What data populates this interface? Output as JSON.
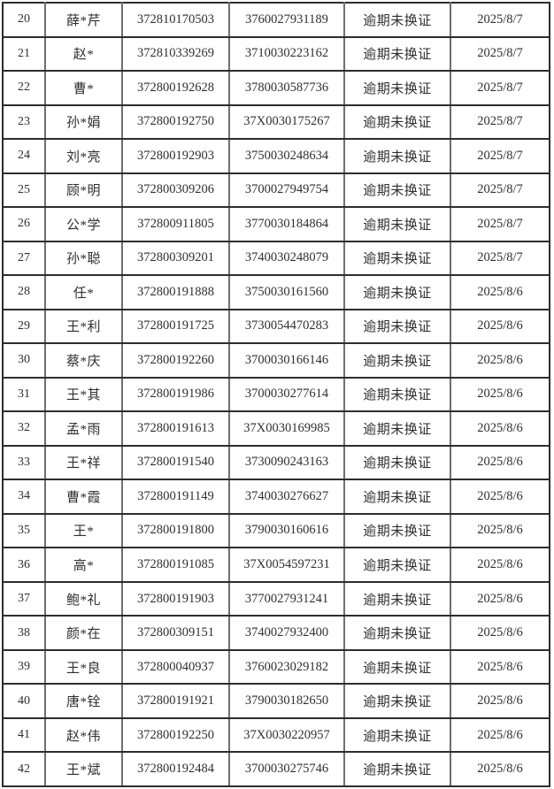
{
  "table": {
    "fields": [
      "index",
      "name",
      "cert_no",
      "id_no",
      "status",
      "date"
    ],
    "status_label": "逾期未换证",
    "rows": [
      {
        "index": "20",
        "name": "薛*芹",
        "cert_no": "372810170503",
        "id_no": "3760027931189",
        "status": "逾期未换证",
        "date": "2025/8/7"
      },
      {
        "index": "21",
        "name": "赵*",
        "cert_no": "372810339269",
        "id_no": "3710030223162",
        "status": "逾期未换证",
        "date": "2025/8/7"
      },
      {
        "index": "22",
        "name": "曹*",
        "cert_no": "372800192628",
        "id_no": "3780030587736",
        "status": "逾期未换证",
        "date": "2025/8/7"
      },
      {
        "index": "23",
        "name": "孙*娟",
        "cert_no": "372800192750",
        "id_no": "37X0030175267",
        "status": "逾期未换证",
        "date": "2025/8/7"
      },
      {
        "index": "24",
        "name": "刘*亮",
        "cert_no": "372800192903",
        "id_no": "3750030248634",
        "status": "逾期未换证",
        "date": "2025/8/7"
      },
      {
        "index": "25",
        "name": "顾*明",
        "cert_no": "372800309206",
        "id_no": "3700027949754",
        "status": "逾期未换证",
        "date": "2025/8/7"
      },
      {
        "index": "26",
        "name": "公*学",
        "cert_no": "372800911805",
        "id_no": "3770030184864",
        "status": "逾期未换证",
        "date": "2025/8/7"
      },
      {
        "index": "27",
        "name": "孙*聪",
        "cert_no": "372800309201",
        "id_no": "3740030248079",
        "status": "逾期未换证",
        "date": "2025/8/7"
      },
      {
        "index": "28",
        "name": "任*",
        "cert_no": "372800191888",
        "id_no": "3750030161560",
        "status": "逾期未换证",
        "date": "2025/8/6"
      },
      {
        "index": "29",
        "name": "王*利",
        "cert_no": "372800191725",
        "id_no": "3730054470283",
        "status": "逾期未换证",
        "date": "2025/8/6"
      },
      {
        "index": "30",
        "name": "蔡*庆",
        "cert_no": "372800192260",
        "id_no": "3700030166146",
        "status": "逾期未换证",
        "date": "2025/8/6"
      },
      {
        "index": "31",
        "name": "王*其",
        "cert_no": "372800191986",
        "id_no": "3700030277614",
        "status": "逾期未换证",
        "date": "2025/8/6"
      },
      {
        "index": "32",
        "name": "孟*雨",
        "cert_no": "372800191613",
        "id_no": "37X0030169985",
        "status": "逾期未换证",
        "date": "2025/8/6"
      },
      {
        "index": "33",
        "name": "王*祥",
        "cert_no": "372800191540",
        "id_no": "3730090243163",
        "status": "逾期未换证",
        "date": "2025/8/6"
      },
      {
        "index": "34",
        "name": "曹*霞",
        "cert_no": "372800191149",
        "id_no": "3740030276627",
        "status": "逾期未换证",
        "date": "2025/8/6"
      },
      {
        "index": "35",
        "name": "王*",
        "cert_no": "372800191800",
        "id_no": "3790030160616",
        "status": "逾期未换证",
        "date": "2025/8/6"
      },
      {
        "index": "36",
        "name": "高*",
        "cert_no": "372800191085",
        "id_no": "37X0054597231",
        "status": "逾期未换证",
        "date": "2025/8/6"
      },
      {
        "index": "37",
        "name": "鲍*礼",
        "cert_no": "372800191903",
        "id_no": "3770027931241",
        "status": "逾期未换证",
        "date": "2025/8/6"
      },
      {
        "index": "38",
        "name": "颜*在",
        "cert_no": "372800309151",
        "id_no": "3740027932400",
        "status": "逾期未换证",
        "date": "2025/8/6"
      },
      {
        "index": "39",
        "name": "王*良",
        "cert_no": "372800040937",
        "id_no": "3760023029182",
        "status": "逾期未换证",
        "date": "2025/8/6"
      },
      {
        "index": "40",
        "name": "唐*铨",
        "cert_no": "372800191921",
        "id_no": "3790030182650",
        "status": "逾期未换证",
        "date": "2025/8/6"
      },
      {
        "index": "41",
        "name": "赵*伟",
        "cert_no": "372800192250",
        "id_no": "37X0030220957",
        "status": "逾期未换证",
        "date": "2025/8/6"
      },
      {
        "index": "42",
        "name": "王*斌",
        "cert_no": "372800192484",
        "id_no": "3700030275746",
        "status": "逾期未换证",
        "date": "2025/8/6"
      }
    ]
  }
}
